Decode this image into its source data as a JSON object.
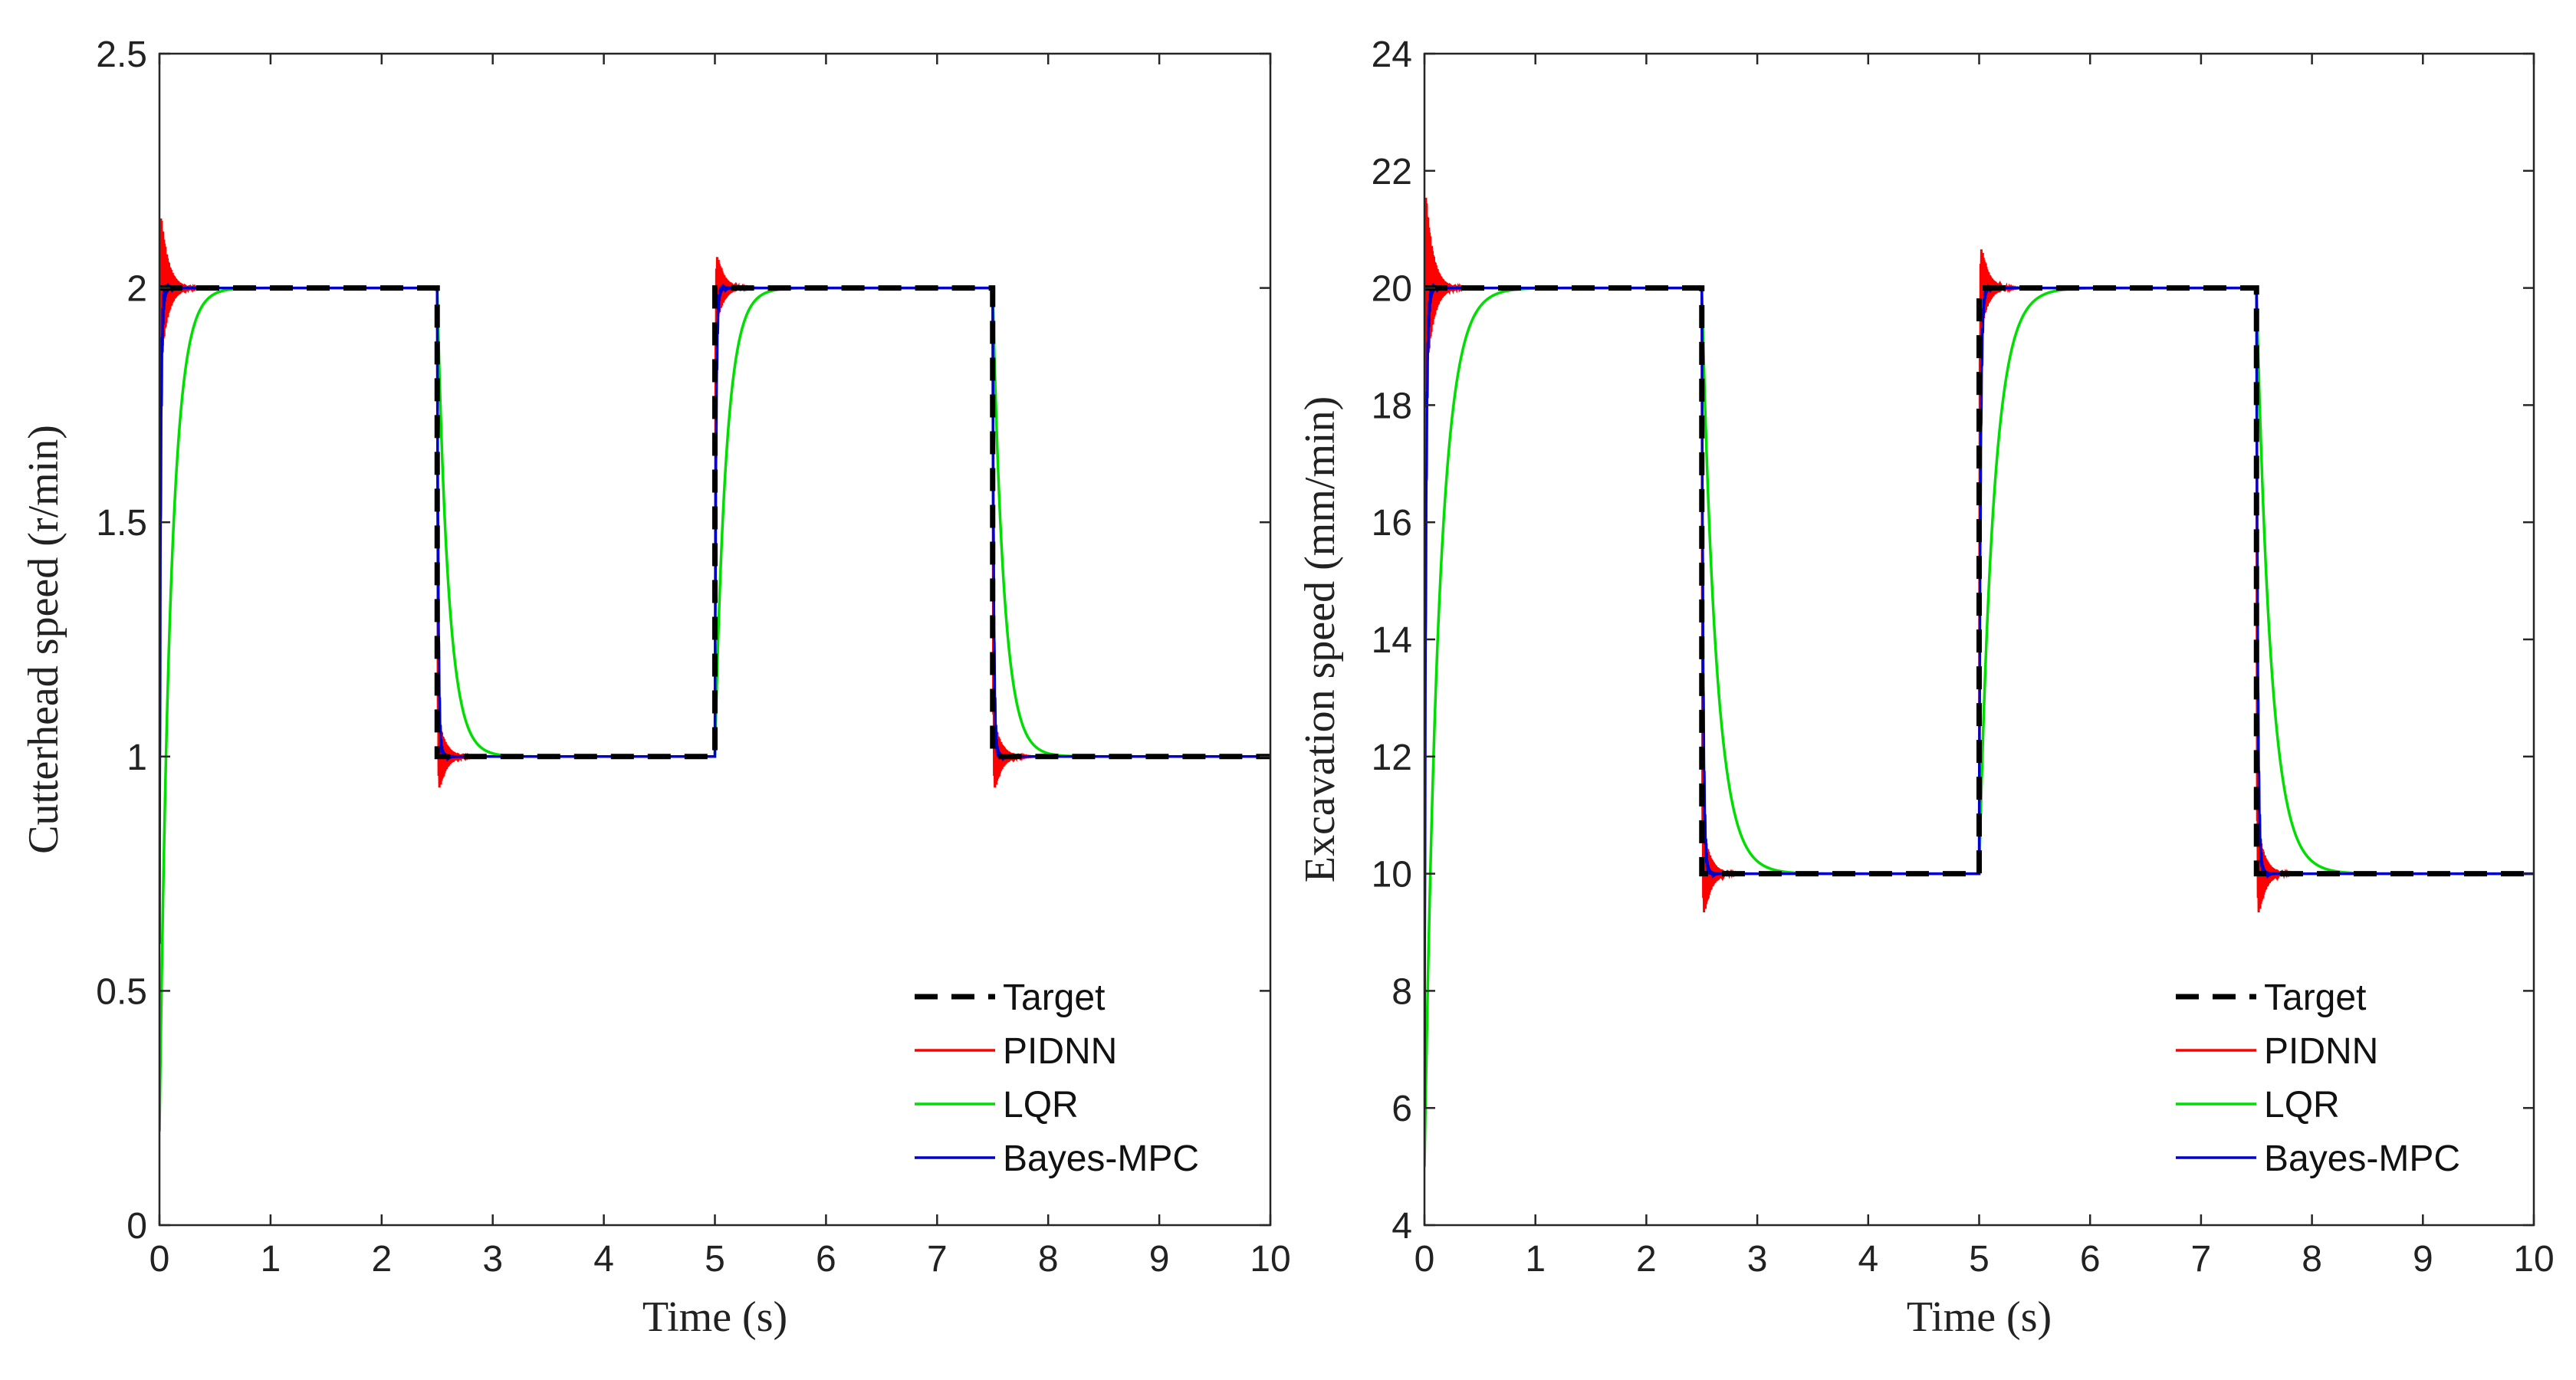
{
  "chart_data": [
    {
      "type": "line",
      "ylabel": "Cutterhead speed (r/min)",
      "xlabel": "Time (s)",
      "xlim": [
        0,
        10
      ],
      "ylim": [
        0,
        2.5
      ],
      "xticks": [
        0,
        1,
        2,
        3,
        4,
        5,
        6,
        7,
        8,
        9,
        10
      ],
      "yticks": [
        0,
        0.5,
        1,
        1.5,
        2,
        2.5
      ],
      "ytick_labels": [
        "0",
        "0.5",
        "1",
        "1.5",
        "2",
        "2.5"
      ],
      "legend_position": "bottom-right",
      "steps": [
        {
          "t": 0,
          "value": 2
        },
        {
          "t": 2.5,
          "value": 1
        },
        {
          "t": 5,
          "value": 2
        },
        {
          "t": 7.5,
          "value": 1
        }
      ],
      "initial_value": 0,
      "series": [
        {
          "name": "Target",
          "color": "#000000",
          "style": "dashed",
          "kind": "target"
        },
        {
          "name": "PIDNN",
          "color": "#ff0000",
          "style": "solid",
          "kind": "pidnn",
          "overshoots": [
            0.2,
            0.1,
            0.1,
            0.1
          ],
          "start_value": 1.7
        },
        {
          "name": "LQR",
          "color": "#00dd00",
          "style": "solid",
          "kind": "lqr",
          "start_value": 0.2,
          "tau": 0.1
        },
        {
          "name": "Bayes-MPC",
          "color": "#0000cc",
          "style": "solid",
          "kind": "mpc",
          "start_value": 0.6,
          "tau": 0.01
        }
      ]
    },
    {
      "type": "line",
      "ylabel": "Excavation speed (mm/min)",
      "xlabel": "Time (s)",
      "xlim": [
        0,
        10
      ],
      "ylim": [
        4,
        24
      ],
      "xticks": [
        0,
        1,
        2,
        3,
        4,
        5,
        6,
        7,
        8,
        9,
        10
      ],
      "yticks": [
        4,
        6,
        8,
        10,
        12,
        14,
        16,
        18,
        20,
        22,
        24
      ],
      "ytick_labels": [
        "4",
        "6",
        "8",
        "10",
        "12",
        "14",
        "16",
        "18",
        "20",
        "22",
        "24"
      ],
      "legend_position": "bottom-right",
      "steps": [
        {
          "t": 0,
          "value": 20
        },
        {
          "t": 2.5,
          "value": 10
        },
        {
          "t": 5,
          "value": 20
        },
        {
          "t": 7.5,
          "value": 10
        }
      ],
      "initial_value": 4,
      "series": [
        {
          "name": "Target",
          "color": "#000000",
          "style": "dashed",
          "kind": "target"
        },
        {
          "name": "PIDNN",
          "color": "#ff0000",
          "style": "solid",
          "kind": "pidnn",
          "overshoots": [
            2,
            1,
            1,
            1
          ],
          "start_value": 18.5
        },
        {
          "name": "LQR",
          "color": "#00dd00",
          "style": "solid",
          "kind": "lqr",
          "start_value": 5,
          "tau": 0.13
        },
        {
          "name": "Bayes-MPC",
          "color": "#0000cc",
          "style": "solid",
          "kind": "mpc",
          "start_value": 6,
          "tau": 0.012
        }
      ]
    }
  ]
}
